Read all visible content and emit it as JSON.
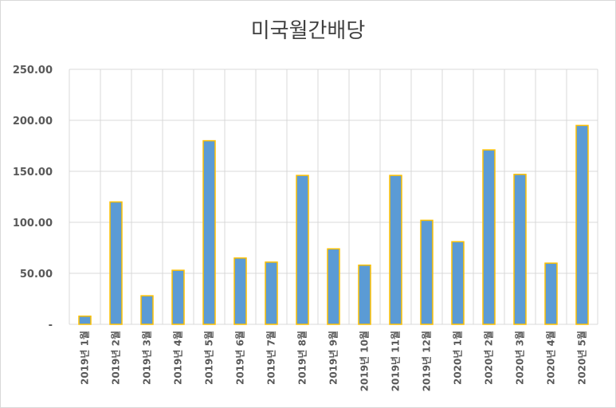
{
  "chart_data": {
    "type": "bar",
    "title": "미국월간배당",
    "categories": [
      "2019년 1월",
      "2019년 2월",
      "2019년 3월",
      "2019년 4월",
      "2019년 5월",
      "2019년 6월",
      "2019년 7월",
      "2019년 8월",
      "2019년 9월",
      "2019년 10월",
      "2019년 11월",
      "2019년 12월",
      "2020년 1월",
      "2020년 2월",
      "2020년 3월",
      "2020년 4월",
      "2020년 5월"
    ],
    "values": [
      8,
      120,
      28,
      53,
      180,
      65,
      61,
      146,
      74,
      58,
      146,
      102,
      81,
      171,
      147,
      60,
      195
    ],
    "ylim": [
      0,
      250
    ],
    "yticks": [
      {
        "value": 0,
        "label": "-"
      },
      {
        "value": 50,
        "label": "50.00"
      },
      {
        "value": 100,
        "label": "100.00"
      },
      {
        "value": 150,
        "label": "150.00"
      },
      {
        "value": 200,
        "label": "200.00"
      },
      {
        "value": 250,
        "label": "250.00"
      }
    ],
    "grid": true,
    "colors": {
      "bar_fill": "#5b9bd5",
      "bar_outline": "#ffc000",
      "grid": "#d9d9d9",
      "text": "#595959"
    }
  }
}
